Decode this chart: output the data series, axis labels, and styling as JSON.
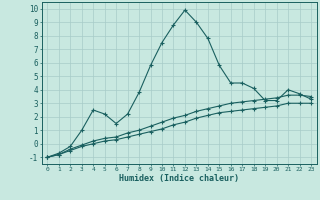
{
  "xlabel": "Humidex (Indice chaleur)",
  "background_color": "#c8e8e0",
  "grid_color": "#a8ccc8",
  "line_color": "#1a6060",
  "xlim": [
    -0.5,
    23.5
  ],
  "ylim": [
    -1.5,
    10.5
  ],
  "xticks": [
    0,
    1,
    2,
    3,
    4,
    5,
    6,
    7,
    8,
    9,
    10,
    11,
    12,
    13,
    14,
    15,
    16,
    17,
    18,
    19,
    20,
    21,
    22,
    23
  ],
  "yticks": [
    -1,
    0,
    1,
    2,
    3,
    4,
    5,
    6,
    7,
    8,
    9,
    10
  ],
  "series1_x": [
    0,
    1,
    2,
    3,
    4,
    5,
    6,
    7,
    8,
    9,
    10,
    11,
    12,
    13,
    14,
    15,
    16,
    17,
    18,
    19,
    20,
    21,
    22,
    23
  ],
  "series1_y": [
    -1.0,
    -0.7,
    -0.2,
    1.0,
    2.5,
    2.2,
    1.5,
    2.2,
    3.8,
    5.8,
    7.5,
    8.8,
    9.9,
    9.0,
    7.8,
    5.8,
    4.5,
    4.5,
    4.1,
    3.2,
    3.2,
    4.0,
    3.7,
    3.3
  ],
  "series2_x": [
    0,
    1,
    2,
    3,
    4,
    5,
    6,
    7,
    8,
    9,
    10,
    11,
    12,
    13,
    14,
    15,
    16,
    17,
    18,
    19,
    20,
    21,
    22,
    23
  ],
  "series2_y": [
    -1.0,
    -0.8,
    -0.4,
    -0.1,
    0.2,
    0.4,
    0.5,
    0.8,
    1.0,
    1.3,
    1.6,
    1.9,
    2.1,
    2.4,
    2.6,
    2.8,
    3.0,
    3.1,
    3.2,
    3.3,
    3.4,
    3.6,
    3.6,
    3.5
  ],
  "series3_x": [
    0,
    1,
    2,
    3,
    4,
    5,
    6,
    7,
    8,
    9,
    10,
    11,
    12,
    13,
    14,
    15,
    16,
    17,
    18,
    19,
    20,
    21,
    22,
    23
  ],
  "series3_y": [
    -1.0,
    -0.8,
    -0.5,
    -0.2,
    0.0,
    0.2,
    0.3,
    0.5,
    0.7,
    0.9,
    1.1,
    1.4,
    1.6,
    1.9,
    2.1,
    2.3,
    2.4,
    2.5,
    2.6,
    2.7,
    2.8,
    3.0,
    3.0,
    3.0
  ],
  "font_family": "monospace"
}
